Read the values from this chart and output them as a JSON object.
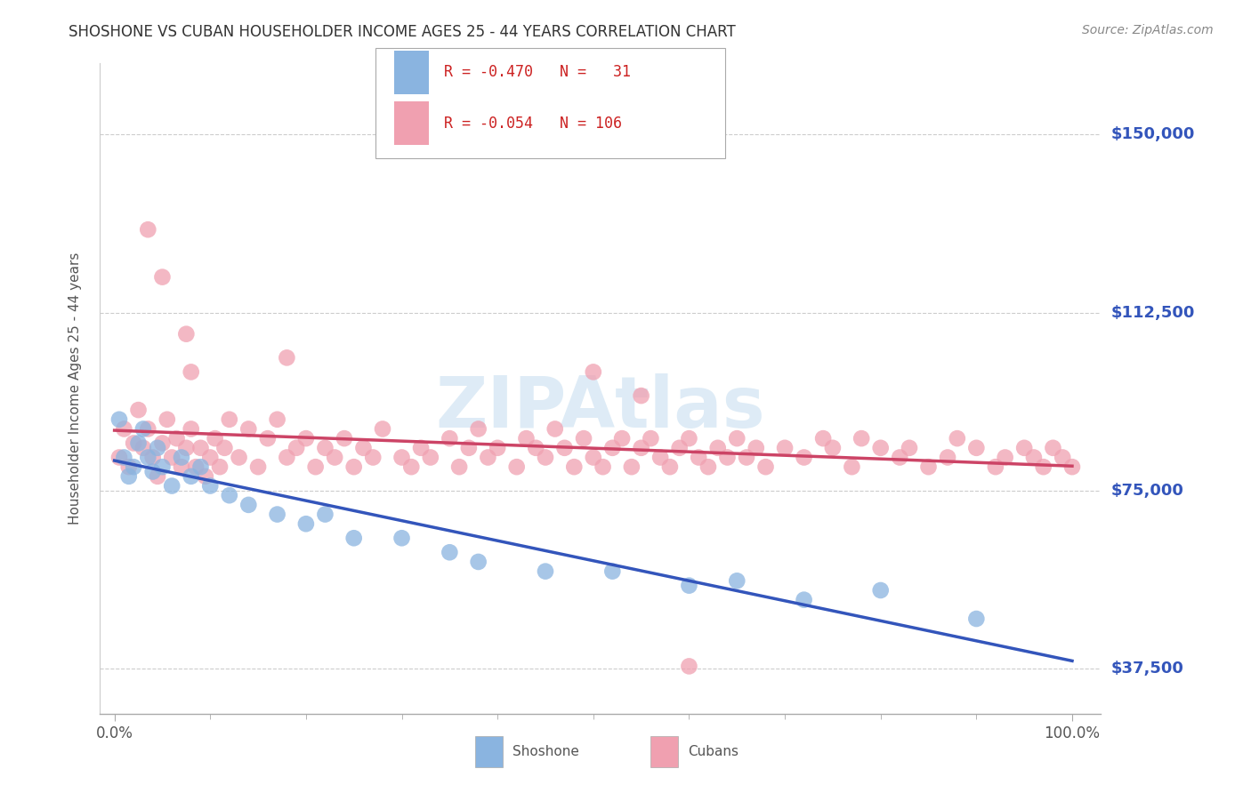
{
  "title": "SHOSHONE VS CUBAN HOUSEHOLDER INCOME AGES 25 - 44 YEARS CORRELATION CHART",
  "source": "Source: ZipAtlas.com",
  "ylabel": "Householder Income Ages 25 - 44 years",
  "xlim": [
    -1.5,
    103.0
  ],
  "ylim": [
    28000,
    165000
  ],
  "yticks": [
    37500,
    75000,
    112500,
    150000
  ],
  "ytick_labels": [
    "$37,500",
    "$75,000",
    "$112,500",
    "$150,000"
  ],
  "xtick_labels": [
    "0.0%",
    "100.0%"
  ],
  "shoshone_color": "#8ab4e0",
  "cuban_color": "#f0a0b0",
  "shoshone_line_color": "#3355bb",
  "cuban_line_color": "#cc4466",
  "background_color": "#ffffff",
  "grid_color": "#cccccc",
  "watermark_color": "#c8dff0",
  "shoshone_x": [
    0.5,
    1.0,
    1.5,
    2.0,
    2.5,
    3.0,
    3.5,
    4.0,
    4.5,
    5.0,
    6.0,
    7.0,
    8.0,
    9.0,
    10.0,
    12.0,
    14.0,
    17.0,
    20.0,
    22.0,
    25.0,
    30.0,
    35.0,
    38.0,
    45.0,
    52.0,
    60.0,
    65.0,
    72.0,
    80.0,
    90.0
  ],
  "shoshone_y": [
    90000,
    82000,
    78000,
    80000,
    85000,
    88000,
    82000,
    79000,
    84000,
    80000,
    76000,
    82000,
    78000,
    80000,
    76000,
    74000,
    72000,
    70000,
    68000,
    70000,
    65000,
    65000,
    62000,
    60000,
    58000,
    58000,
    55000,
    56000,
    52000,
    54000,
    48000
  ],
  "cuban_x": [
    0.5,
    1.0,
    1.5,
    2.0,
    2.5,
    3.0,
    3.5,
    4.0,
    4.5,
    5.0,
    5.5,
    6.0,
    6.5,
    7.0,
    7.5,
    8.0,
    8.5,
    9.0,
    9.5,
    10.0,
    10.5,
    11.0,
    11.5,
    12.0,
    13.0,
    14.0,
    15.0,
    16.0,
    17.0,
    18.0,
    19.0,
    20.0,
    21.0,
    22.0,
    23.0,
    24.0,
    25.0,
    26.0,
    27.0,
    28.0,
    30.0,
    31.0,
    32.0,
    33.0,
    35.0,
    36.0,
    37.0,
    38.0,
    39.0,
    40.0,
    42.0,
    43.0,
    44.0,
    45.0,
    46.0,
    47.0,
    48.0,
    49.0,
    50.0,
    51.0,
    52.0,
    53.0,
    54.0,
    55.0,
    56.0,
    57.0,
    58.0,
    59.0,
    60.0,
    61.0,
    62.0,
    63.0,
    64.0,
    65.0,
    66.0,
    67.0,
    68.0,
    70.0,
    72.0,
    74.0,
    75.0,
    77.0,
    78.0,
    80.0,
    82.0,
    83.0,
    85.0,
    87.0,
    88.0,
    90.0,
    92.0,
    93.0,
    95.0,
    96.0,
    97.0,
    98.0,
    99.0,
    100.0,
    18.0,
    8.0,
    3.5,
    5.0,
    7.5,
    55.0,
    50.0,
    60.0
  ],
  "cuban_y": [
    82000,
    88000,
    80000,
    85000,
    92000,
    84000,
    88000,
    82000,
    78000,
    85000,
    90000,
    82000,
    86000,
    80000,
    84000,
    88000,
    80000,
    84000,
    78000,
    82000,
    86000,
    80000,
    84000,
    90000,
    82000,
    88000,
    80000,
    86000,
    90000,
    82000,
    84000,
    86000,
    80000,
    84000,
    82000,
    86000,
    80000,
    84000,
    82000,
    88000,
    82000,
    80000,
    84000,
    82000,
    86000,
    80000,
    84000,
    88000,
    82000,
    84000,
    80000,
    86000,
    84000,
    82000,
    88000,
    84000,
    80000,
    86000,
    82000,
    80000,
    84000,
    86000,
    80000,
    84000,
    86000,
    82000,
    80000,
    84000,
    86000,
    82000,
    80000,
    84000,
    82000,
    86000,
    82000,
    84000,
    80000,
    84000,
    82000,
    86000,
    84000,
    80000,
    86000,
    84000,
    82000,
    84000,
    80000,
    82000,
    86000,
    84000,
    80000,
    82000,
    84000,
    82000,
    80000,
    84000,
    82000,
    80000,
    103000,
    100000,
    130000,
    120000,
    108000,
    95000,
    100000,
    38000
  ]
}
